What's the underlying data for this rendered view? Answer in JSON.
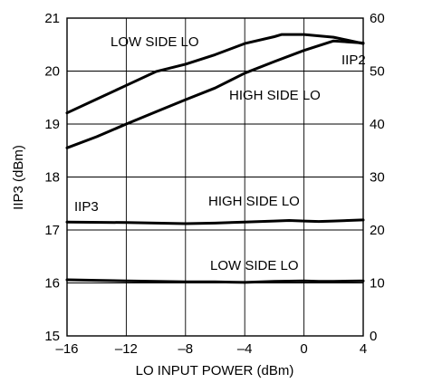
{
  "chart_data": {
    "type": "line",
    "title": "",
    "xlabel": "LO INPUT POWER (dBm)",
    "ylabel": "IIP3 (dBm)",
    "y2label": "",
    "xlim": [
      -16,
      4
    ],
    "ylim": [
      15,
      21
    ],
    "y2lim": [
      0,
      60
    ],
    "grid": true,
    "x_ticks": [
      "–16",
      "–12",
      "–8",
      "–4",
      "0",
      "4"
    ],
    "y_ticks": [
      "15",
      "16",
      "17",
      "18",
      "19",
      "20",
      "21"
    ],
    "y2_ticks": [
      "0",
      "10",
      "20",
      "30",
      "40",
      "50",
      "60"
    ],
    "annotations": [
      "LOW SIDE LO",
      "HIGH SIDE LO",
      "IIP2",
      "IIP3",
      "HIGH SIDE LO",
      "LOW SIDE LO"
    ],
    "series": [
      {
        "name": "LOW SIDE LO",
        "axis": "right",
        "x": [
          -16,
          -14,
          -12,
          -10,
          -8,
          -6,
          -4,
          -2,
          -1.5,
          0,
          2,
          4
        ],
        "y": [
          42.1,
          44.7,
          47.3,
          49.9,
          51.3,
          53.1,
          55.2,
          56.5,
          56.9,
          56.9,
          56.4,
          55.2
        ]
      },
      {
        "name": "HIGH SIDE LO",
        "axis": "right",
        "x": [
          -16,
          -14,
          -12,
          -10,
          -8,
          -6,
          -4,
          -2,
          0,
          2,
          4
        ],
        "y": [
          35.5,
          37.6,
          40.0,
          42.3,
          44.6,
          46.8,
          49.6,
          51.8,
          53.9,
          55.7,
          55.3
        ]
      },
      {
        "name": "HIGH SIDE LO",
        "axis": "left",
        "x": [
          -16,
          -12,
          -8,
          -6,
          -4,
          -2,
          -1,
          0,
          1,
          2,
          4
        ],
        "y": [
          17.15,
          17.14,
          17.12,
          17.13,
          17.15,
          17.17,
          17.18,
          17.17,
          17.16,
          17.17,
          17.19
        ]
      },
      {
        "name": "LOW SIDE LO",
        "axis": "left",
        "x": [
          -16,
          -14,
          -12,
          -10,
          -8,
          -6,
          -4,
          -2,
          0,
          1,
          2,
          4
        ],
        "y": [
          16.06,
          16.05,
          16.04,
          16.03,
          16.02,
          16.02,
          16.01,
          16.03,
          16.04,
          16.03,
          16.03,
          16.04
        ]
      }
    ]
  }
}
